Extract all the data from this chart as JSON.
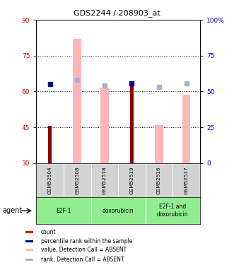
{
  "title": "GDS2244 / 208903_at",
  "samples": [
    "GSM52504",
    "GSM52508",
    "GSM52518",
    "GSM52519",
    "GSM52516",
    "GSM52517"
  ],
  "groups": [
    {
      "label": "E2F-1",
      "span": [
        0,
        2
      ]
    },
    {
      "label": "doxorubicin",
      "span": [
        2,
        4
      ]
    },
    {
      "label": "E2F-1 and\ndoxorubicin",
      "span": [
        4,
        6
      ]
    }
  ],
  "red_bars": [
    45.5,
    null,
    null,
    63.0,
    null,
    null
  ],
  "pink_bars": [
    null,
    82.0,
    61.5,
    null,
    46.0,
    58.5
  ],
  "blue_squares": [
    63.0,
    null,
    null,
    63.5,
    null,
    null
  ],
  "light_blue_squares": [
    null,
    65.0,
    62.5,
    null,
    62.0,
    63.5
  ],
  "ylim_left": [
    30,
    90
  ],
  "ylim_right": [
    0,
    100
  ],
  "yticks_left": [
    30,
    45,
    60,
    75,
    90
  ],
  "yticks_right": [
    0,
    25,
    50,
    75,
    100
  ],
  "left_tick_color": "#cc0000",
  "right_tick_color": "#0000cc",
  "hlines": [
    45,
    60,
    75
  ],
  "pink_bar_color": "#ffb6b6",
  "red_bar_color": "#8b0000",
  "blue_sq_color": "#00008b",
  "lblue_sq_color": "#aab0d0",
  "sample_area_color": "#d3d3d3",
  "group_area_color": "#90ee90",
  "legend_items": [
    {
      "color": "#cc2200",
      "label": "count"
    },
    {
      "color": "#00008b",
      "label": "percentile rank within the sample"
    },
    {
      "color": "#ffb6b6",
      "label": "value, Detection Call = ABSENT"
    },
    {
      "color": "#aab0d0",
      "label": "rank, Detection Call = ABSENT"
    }
  ],
  "pink_bar_width": 0.3,
  "red_bar_width": 0.14
}
